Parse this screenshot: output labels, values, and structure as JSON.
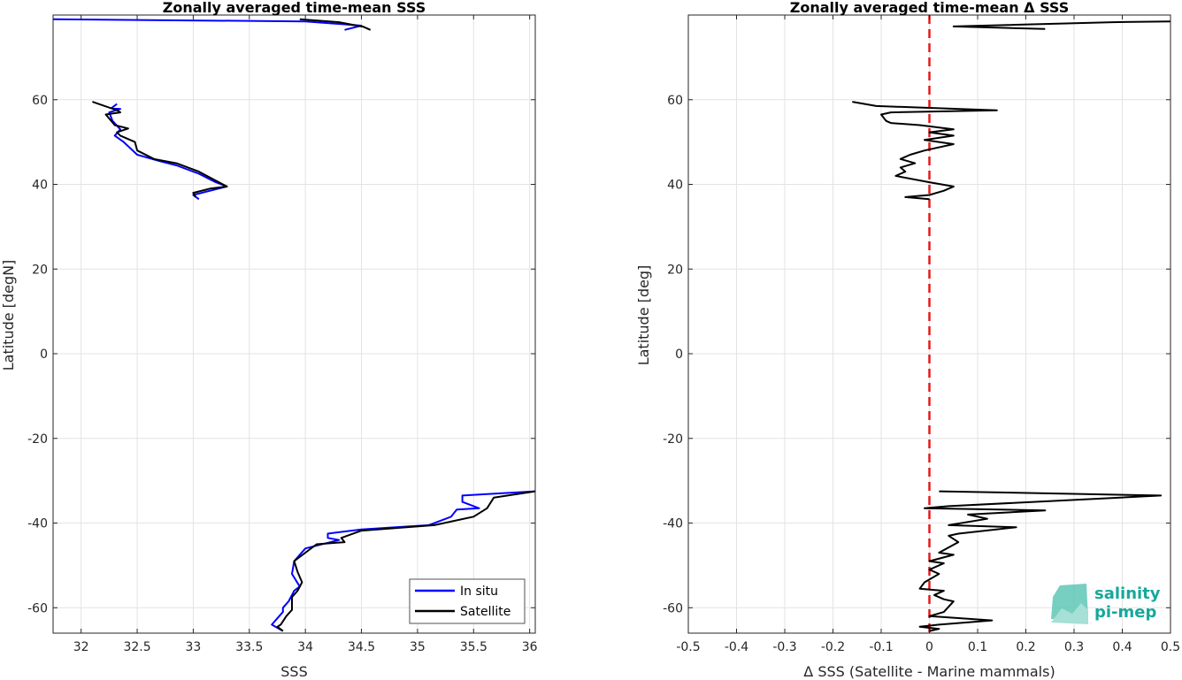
{
  "chart_data": [
    {
      "type": "line",
      "title": "Zonally averaged time-mean SSS",
      "xlabel": "SSS",
      "ylabel": "Latitude [degN]",
      "xlim": [
        31.75,
        36.05
      ],
      "ylim": [
        -66,
        80
      ],
      "xticks": [
        32,
        32.5,
        33,
        33.5,
        34,
        34.5,
        35,
        35.5,
        36
      ],
      "xtick_labels": [
        "32",
        "32.5",
        "33",
        "33.5",
        "34",
        "34.5",
        "35",
        "35.5",
        "36"
      ],
      "yticks": [
        -60,
        -40,
        -20,
        0,
        20,
        40,
        60
      ],
      "ytick_labels": [
        "-60",
        "-40",
        "-20",
        "0",
        "20",
        "40",
        "60"
      ],
      "grid": true,
      "legend_position": "bottom-right",
      "series": [
        {
          "name": "In situ",
          "color": "#0000ff",
          "segments": [
            [
              [
                31.75,
                79
              ],
              [
                34.0,
                78.5
              ],
              [
                34.5,
                77.5
              ],
              [
                34.35,
                76.5
              ]
            ],
            [
              [
                32.32,
                59
              ],
              [
                32.27,
                58
              ],
              [
                32.35,
                57.8
              ],
              [
                32.25,
                57
              ],
              [
                32.28,
                55
              ],
              [
                32.35,
                53
              ],
              [
                32.3,
                51.5
              ],
              [
                32.38,
                50
              ],
              [
                32.5,
                47
              ],
              [
                32.7,
                45.5
              ],
              [
                32.85,
                44.5
              ],
              [
                33.05,
                42.5
              ],
              [
                33.2,
                40.5
              ],
              [
                33.3,
                39.5
              ],
              [
                33.0,
                37.5
              ],
              [
                33.05,
                36.5
              ]
            ],
            [
              [
                36.05,
                -32.5
              ],
              [
                35.4,
                -33.5
              ],
              [
                35.4,
                -35
              ],
              [
                35.55,
                -36.5
              ],
              [
                35.35,
                -36.8
              ],
              [
                35.3,
                -38.5
              ],
              [
                35.1,
                -40.5
              ],
              [
                34.5,
                -41.5
              ],
              [
                34.2,
                -42.5
              ],
              [
                34.2,
                -43.5
              ],
              [
                34.3,
                -44
              ],
              [
                34.0,
                -46
              ],
              [
                33.95,
                -47.5
              ],
              [
                33.9,
                -49
              ],
              [
                33.88,
                -52
              ],
              [
                33.95,
                -55
              ],
              [
                33.9,
                -56
              ],
              [
                33.85,
                -58.5
              ],
              [
                33.8,
                -60
              ],
              [
                33.8,
                -61
              ],
              [
                33.75,
                -62.5
              ],
              [
                33.7,
                -64
              ],
              [
                33.8,
                -65.5
              ]
            ]
          ]
        },
        {
          "name": "Satellite",
          "color": "#000000",
          "segments": [
            [
              [
                33.95,
                79
              ],
              [
                34.3,
                78.3
              ],
              [
                34.52,
                77.2
              ],
              [
                34.58,
                76.5
              ]
            ],
            [
              [
                32.1,
                59.5
              ],
              [
                32.32,
                57.5
              ],
              [
                32.35,
                57
              ],
              [
                32.22,
                56.5
              ],
              [
                32.3,
                54
              ],
              [
                32.42,
                53.2
              ],
              [
                32.32,
                52.3
              ],
              [
                32.35,
                51.5
              ],
              [
                32.48,
                50
              ],
              [
                32.5,
                48
              ],
              [
                32.65,
                46
              ],
              [
                32.85,
                45
              ],
              [
                33.05,
                43
              ],
              [
                33.3,
                39.5
              ],
              [
                33.15,
                39
              ],
              [
                33.0,
                38
              ],
              [
                33.02,
                37
              ]
            ],
            [
              [
                36.05,
                -32.5
              ],
              [
                35.68,
                -34
              ],
              [
                35.62,
                -36.5
              ],
              [
                35.5,
                -38.5
              ],
              [
                35.15,
                -40.5
              ],
              [
                34.5,
                -41.8
              ],
              [
                34.32,
                -43.5
              ],
              [
                34.35,
                -44.5
              ],
              [
                34.1,
                -45
              ],
              [
                33.9,
                -49
              ],
              [
                33.93,
                -51.5
              ],
              [
                33.97,
                -54
              ],
              [
                33.93,
                -56
              ],
              [
                33.88,
                -57.5
              ],
              [
                33.88,
                -60.5
              ],
              [
                33.83,
                -62
              ],
              [
                33.78,
                -64
              ],
              [
                33.75,
                -64.5
              ],
              [
                33.8,
                -65.5
              ]
            ]
          ]
        }
      ]
    },
    {
      "type": "line",
      "title": "Zonally averaged time-mean Δ SSS",
      "xlabel": "Δ SSS (Satellite - Marine mammals)",
      "ylabel": "Latitude [deg]",
      "xlim": [
        -0.5,
        0.5
      ],
      "ylim": [
        -66,
        80
      ],
      "xticks": [
        -0.5,
        -0.4,
        -0.3,
        -0.2,
        -0.1,
        0,
        0.1,
        0.2,
        0.3,
        0.4,
        0.5
      ],
      "xtick_labels": [
        "-0.5",
        "-0.4",
        "-0.3",
        "-0.2",
        "-0.1",
        "0",
        "0.1",
        "0.2",
        "0.3",
        "0.4",
        "0.5"
      ],
      "yticks": [
        -60,
        -40,
        -20,
        0,
        20,
        40,
        60
      ],
      "ytick_labels": [
        "-60",
        "-40",
        "-20",
        "0",
        "20",
        "40",
        "60"
      ],
      "grid": true,
      "reference_line": {
        "x": 0,
        "color": "#e41a1c",
        "style": "dashed"
      },
      "series": [
        {
          "color": "#000000",
          "segments": [
            [
              [
                0.5,
                78.5
              ],
              [
                0.38,
                78.3
              ],
              [
                0.05,
                77.3
              ],
              [
                0.24,
                76.7
              ]
            ],
            [
              [
                -0.16,
                59.5
              ],
              [
                -0.11,
                58.5
              ],
              [
                0.14,
                57.5
              ],
              [
                -0.08,
                57
              ],
              [
                -0.1,
                56.5
              ],
              [
                -0.09,
                55
              ],
              [
                -0.08,
                54.5
              ],
              [
                -0.02,
                54
              ],
              [
                0.05,
                53
              ],
              [
                0.0,
                52.3
              ],
              [
                0.05,
                51.5
              ],
              [
                -0.01,
                50.5
              ],
              [
                0.05,
                49.5
              ],
              [
                -0.01,
                48
              ],
              [
                -0.04,
                47
              ],
              [
                -0.06,
                46
              ],
              [
                -0.03,
                45
              ],
              [
                -0.06,
                44
              ],
              [
                -0.05,
                43
              ],
              [
                -0.07,
                42
              ],
              [
                0.0,
                40.5
              ],
              [
                0.05,
                39.5
              ],
              [
                0.03,
                38.5
              ],
              [
                0.0,
                37.5
              ],
              [
                -0.05,
                37
              ],
              [
                0.0,
                36.5
              ]
            ],
            [
              [
                0.02,
                -32.5
              ],
              [
                0.48,
                -33.5
              ],
              [
                0.04,
                -36
              ],
              [
                -0.01,
                -36.5
              ],
              [
                0.24,
                -37
              ],
              [
                0.08,
                -38
              ],
              [
                0.12,
                -39
              ],
              [
                0.04,
                -40.5
              ],
              [
                0.18,
                -41
              ],
              [
                0.06,
                -42.5
              ],
              [
                0.04,
                -43
              ],
              [
                0.06,
                -44.5
              ],
              [
                0.02,
                -47
              ],
              [
                0.05,
                -47.5
              ],
              [
                0.0,
                -49
              ],
              [
                0.03,
                -49.5
              ],
              [
                0.0,
                -51
              ],
              [
                0.02,
                -52
              ],
              [
                -0.01,
                -54
              ],
              [
                -0.02,
                -55.5
              ],
              [
                0.03,
                -56
              ],
              [
                0.01,
                -57
              ],
              [
                0.03,
                -58
              ],
              [
                0.05,
                -58.5
              ],
              [
                0.03,
                -61
              ],
              [
                0.0,
                -62
              ],
              [
                0.13,
                -63
              ],
              [
                0.02,
                -64
              ],
              [
                -0.02,
                -64.5
              ],
              [
                0.02,
                -65
              ],
              [
                0.0,
                -65.5
              ]
            ]
          ]
        }
      ]
    }
  ],
  "logo": {
    "line1": "salinity",
    "line2": "pi-mep",
    "color": "#17a89a"
  }
}
